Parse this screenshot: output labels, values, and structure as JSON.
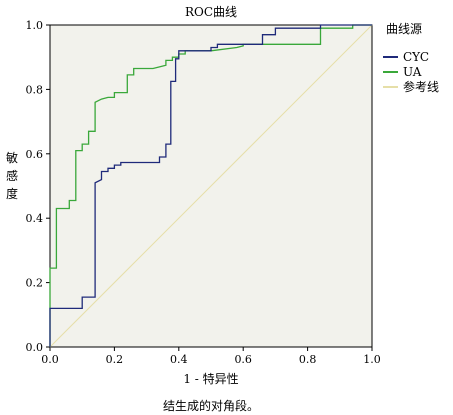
{
  "chart_data": {
    "type": "line",
    "title": "ROC曲线",
    "xlabel": "1 - 特异性",
    "ylabel": "敏感度",
    "footnote": "结生成的对角段。",
    "legend_title": "曲线源",
    "legend_position": "right",
    "xlim": [
      0,
      1
    ],
    "ylim": [
      0,
      1
    ],
    "x_ticks": [
      "0.0",
      "0.2",
      "0.4",
      "0.6",
      "0.8",
      "1.0"
    ],
    "y_ticks": [
      "0.0",
      "0.2",
      "0.4",
      "0.6",
      "0.8",
      "1.0"
    ],
    "grid": false,
    "plot_background": "#f2f2ec",
    "series": [
      {
        "name": "CYC",
        "color": "#1f2a7a",
        "points": [
          [
            0.0,
            0.0
          ],
          [
            0.0,
            0.12
          ],
          [
            0.1,
            0.12
          ],
          [
            0.1,
            0.155
          ],
          [
            0.14,
            0.155
          ],
          [
            0.14,
            0.51
          ],
          [
            0.16,
            0.52
          ],
          [
            0.16,
            0.545
          ],
          [
            0.18,
            0.545
          ],
          [
            0.18,
            0.555
          ],
          [
            0.2,
            0.555
          ],
          [
            0.2,
            0.565
          ],
          [
            0.22,
            0.565
          ],
          [
            0.22,
            0.573
          ],
          [
            0.34,
            0.573
          ],
          [
            0.34,
            0.59
          ],
          [
            0.36,
            0.59
          ],
          [
            0.36,
            0.63
          ],
          [
            0.375,
            0.63
          ],
          [
            0.375,
            0.825
          ],
          [
            0.39,
            0.825
          ],
          [
            0.39,
            0.895
          ],
          [
            0.4,
            0.895
          ],
          [
            0.4,
            0.92
          ],
          [
            0.5,
            0.92
          ],
          [
            0.5,
            0.93
          ],
          [
            0.52,
            0.93
          ],
          [
            0.52,
            0.94
          ],
          [
            0.66,
            0.94
          ],
          [
            0.66,
            0.97
          ],
          [
            0.7,
            0.97
          ],
          [
            0.7,
            0.99
          ],
          [
            0.84,
            0.99
          ],
          [
            0.84,
            1.0
          ],
          [
            1.0,
            1.0
          ]
        ]
      },
      {
        "name": "UA",
        "color": "#3aa83a",
        "points": [
          [
            0.0,
            0.0
          ],
          [
            0.0,
            0.245
          ],
          [
            0.02,
            0.245
          ],
          [
            0.02,
            0.43
          ],
          [
            0.06,
            0.43
          ],
          [
            0.06,
            0.455
          ],
          [
            0.08,
            0.455
          ],
          [
            0.08,
            0.61
          ],
          [
            0.1,
            0.61
          ],
          [
            0.1,
            0.63
          ],
          [
            0.12,
            0.63
          ],
          [
            0.12,
            0.67
          ],
          [
            0.14,
            0.67
          ],
          [
            0.14,
            0.76
          ],
          [
            0.16,
            0.77
          ],
          [
            0.18,
            0.775
          ],
          [
            0.2,
            0.775
          ],
          [
            0.2,
            0.79
          ],
          [
            0.24,
            0.79
          ],
          [
            0.24,
            0.845
          ],
          [
            0.26,
            0.845
          ],
          [
            0.26,
            0.865
          ],
          [
            0.32,
            0.865
          ],
          [
            0.34,
            0.87
          ],
          [
            0.36,
            0.875
          ],
          [
            0.36,
            0.89
          ],
          [
            0.38,
            0.89
          ],
          [
            0.38,
            0.9
          ],
          [
            0.4,
            0.9
          ],
          [
            0.4,
            0.91
          ],
          [
            0.42,
            0.91
          ],
          [
            0.42,
            0.92
          ],
          [
            0.5,
            0.92
          ],
          [
            0.58,
            0.93
          ],
          [
            0.6,
            0.935
          ],
          [
            0.6,
            0.94
          ],
          [
            0.84,
            0.94
          ],
          [
            0.84,
            0.99
          ],
          [
            0.94,
            0.99
          ],
          [
            0.94,
            1.0
          ],
          [
            1.0,
            1.0
          ]
        ]
      },
      {
        "name": "参考线",
        "color": "#e6dfa8",
        "points": [
          [
            0,
            0
          ],
          [
            1,
            1
          ]
        ]
      }
    ]
  }
}
